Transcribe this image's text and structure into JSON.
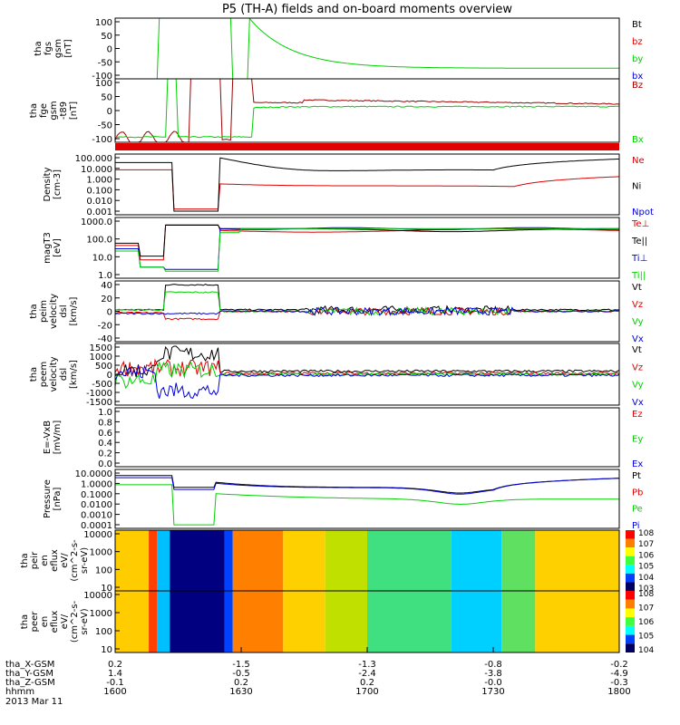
{
  "title": "P5 (TH-A) fields and on-board moments overview",
  "colors": {
    "black": "#000000",
    "red": "#e00000",
    "green": "#00d000",
    "blue": "#0000e0",
    "darkred": "#a00000"
  },
  "chart_data": [
    {
      "type": "line",
      "panel": "fgs-gsm",
      "ylabel": [
        "tha",
        "fgs",
        "gsm",
        "[nT]"
      ],
      "ylim": [
        -100,
        100
      ],
      "yticks": [
        "100",
        "50",
        "0",
        "-50",
        "-100"
      ],
      "series": [
        {
          "name": "Bt",
          "color": "#000000"
        },
        {
          "name": "bz",
          "color": "#e00000"
        },
        {
          "name": "by",
          "color": "#00d000"
        },
        {
          "name": "bx",
          "color": "#0000e0"
        }
      ]
    },
    {
      "type": "line",
      "panel": "fgm-gsm",
      "ylabel": [
        "tha",
        "fge",
        "gsm",
        "-t89",
        "[nT]"
      ],
      "ylim": [
        -120,
        120
      ],
      "yticks": [
        "100",
        "50",
        "0",
        "-50",
        "-100"
      ],
      "series": [
        {
          "name": "Bz",
          "color": "#a00000"
        },
        {
          "name": "Bx",
          "color": "#00d000"
        }
      ]
    },
    {
      "type": "line",
      "panel": "density",
      "ylabel": [
        "Density",
        "[cm-3]"
      ],
      "scale": "log",
      "ylim": [
        0.001,
        100
      ],
      "yticks": [
        "100.000",
        "10.000",
        "1.000",
        "0.100",
        "0.010",
        "0.001"
      ],
      "series": [
        {
          "name": "Ne",
          "color": "#e00000"
        },
        {
          "name": "Ni",
          "color": "#000000"
        },
        {
          "name": "Npot",
          "color": "#0000e0"
        }
      ]
    },
    {
      "type": "line",
      "panel": "temperature",
      "ylabel": [
        "magT3",
        "[eV]"
      ],
      "scale": "log",
      "ylim": [
        0.5,
        1000
      ],
      "yticks": [
        "1000.0",
        "100.0",
        "10.0",
        "1.0"
      ],
      "series": [
        {
          "name": "Te⊥",
          "color": "#e00000"
        },
        {
          "name": "Te||",
          "color": "#000000"
        },
        {
          "name": "Ti⊥",
          "color": "#0000e0"
        },
        {
          "name": "Ti||",
          "color": "#00d000"
        }
      ]
    },
    {
      "type": "line",
      "panel": "peim-velocity",
      "ylabel": [
        "tha",
        "peim",
        "velocity",
        "dsl",
        "[km/s]"
      ],
      "ylim": [
        -40,
        40
      ],
      "yticks": [
        "40",
        "20",
        "0",
        "-20",
        "-40"
      ],
      "series": [
        {
          "name": "Vt",
          "color": "#000000"
        },
        {
          "name": "Vz",
          "color": "#e00000"
        },
        {
          "name": "Vy",
          "color": "#00d000"
        },
        {
          "name": "Vx",
          "color": "#0000e0"
        }
      ]
    },
    {
      "type": "line",
      "panel": "peem-velocity",
      "ylabel": [
        "tha",
        "peem",
        "velocity",
        "dsl",
        "[km/s]"
      ],
      "ylim": [
        -1500,
        1500
      ],
      "yticks": [
        "1500",
        "1000",
        "500",
        "0",
        "-500",
        "-1000",
        "-1500"
      ],
      "series": [
        {
          "name": "Vt",
          "color": "#000000"
        },
        {
          "name": "Vz",
          "color": "#e00000"
        },
        {
          "name": "Vy",
          "color": "#00d000"
        },
        {
          "name": "Vx",
          "color": "#0000e0"
        }
      ]
    },
    {
      "type": "line",
      "panel": "efield",
      "ylabel": [
        "E=-VxB",
        "[mV/m]"
      ],
      "ylim": [
        0.0,
        1.0
      ],
      "yticks": [
        "1.0",
        "0.8",
        "0.6",
        "0.4",
        "0.2",
        "0.0"
      ],
      "series": [
        {
          "name": "Ez",
          "color": "#e00000"
        },
        {
          "name": "Ey",
          "color": "#00d000"
        },
        {
          "name": "Ex",
          "color": "#0000e0"
        }
      ]
    },
    {
      "type": "line",
      "panel": "pressure",
      "ylabel": [
        "Pressure",
        "[nPa]"
      ],
      "scale": "log",
      "ylim": [
        0.0001,
        10
      ],
      "yticks": [
        "10.0000",
        "1.0000",
        "0.1000",
        "0.0100",
        "0.0010",
        "0.0001"
      ],
      "series": [
        {
          "name": "Pt",
          "color": "#000000"
        },
        {
          "name": "Pb",
          "color": "#e00000"
        },
        {
          "name": "Pe",
          "color": "#00d000"
        },
        {
          "name": "Pi",
          "color": "#0000e0"
        }
      ]
    },
    {
      "type": "heatmap",
      "panel": "peir-spectrogram",
      "ylabel": [
        "tha",
        "peir",
        "en",
        "eflux",
        "eV/",
        "(cm^2-s-",
        "sr-eV)"
      ],
      "scale": "log",
      "ylim": [
        10,
        20000
      ],
      "yticks": [
        "10000",
        "1000",
        "100",
        "10"
      ],
      "colorbar": [
        "10^8",
        "10^7",
        "10^6",
        "10^5",
        "10^4",
        "10^3"
      ]
    },
    {
      "type": "heatmap",
      "panel": "peer-spectrogram",
      "ylabel": [
        "tha",
        "peer",
        "en",
        "eflux",
        "eV/",
        "(cm^2-s-",
        "sr-eV)"
      ],
      "scale": "log",
      "ylim": [
        8,
        20000
      ],
      "yticks": [
        "10000",
        "1000",
        "100",
        "10"
      ],
      "colorbar": [
        "10^8",
        "10^7",
        "10^6",
        "10^5",
        "10^4"
      ]
    }
  ],
  "xaxis": {
    "rows": [
      {
        "label": "tha_X-GSM",
        "values": [
          "0.2",
          "-1.5",
          "-1.3",
          "-0.8",
          "-0.2"
        ]
      },
      {
        "label": "tha_Y-GSM",
        "values": [
          "1.4",
          "-0.5",
          "-2.4",
          "-3.8",
          "-4.9"
        ]
      },
      {
        "label": "tha_Z-GSM",
        "values": [
          "-0.1",
          "0.2",
          "0.2",
          "-0.0",
          "-0.3"
        ]
      },
      {
        "label": "hhmm",
        "values": [
          "1600",
          "1630",
          "1700",
          "1730",
          "1800"
        ]
      }
    ],
    "date": "2013 Mar 11"
  }
}
